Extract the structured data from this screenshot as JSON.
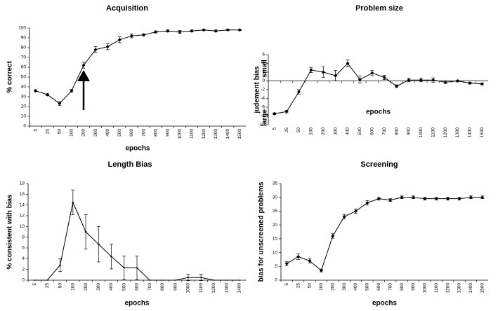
{
  "chart_data": [
    {
      "type": "line",
      "title": "Acquisition",
      "xlabel": "epochs",
      "ylabel": "% correct",
      "categories": [
        "5",
        "25",
        "50",
        "100",
        "200",
        "300",
        "400",
        "500",
        "600",
        "700",
        "800",
        "900",
        "1000",
        "1100",
        "1200",
        "1300",
        "1400",
        "1500"
      ],
      "series": [
        {
          "color": "#000000",
          "marker": "diamond",
          "values": [
            36,
            32,
            23,
            36,
            62,
            78,
            81,
            88,
            92,
            93,
            96,
            97,
            96,
            97,
            98,
            97,
            98,
            98
          ],
          "errors": [
            1,
            1,
            2,
            1.5,
            3,
            3,
            3,
            3,
            2,
            1,
            1,
            1,
            1.5,
            1,
            0.5,
            1,
            0.5,
            0.5
          ]
        }
      ],
      "ylim": [
        0,
        100
      ],
      "yticks": [
        0,
        10,
        20,
        30,
        40,
        50,
        60,
        70,
        80,
        90,
        100
      ]
    },
    {
      "type": "line",
      "title": "Problem size",
      "xlabel": "epochs",
      "ylabel": "judement bias",
      "ylabel_top": "small",
      "ylabel_bottom": "large",
      "categories": [
        "5",
        "25",
        "50",
        "100",
        "200",
        "300",
        "400",
        "500",
        "600",
        "700",
        "800",
        "900",
        "1000",
        "1100",
        "1200",
        "1300",
        "1400",
        "1500"
      ],
      "series": [
        {
          "color": "#000000",
          "marker": "diamond",
          "values": [
            -7.5,
            -7,
            -2.5,
            2.5,
            2,
            1.2,
            4,
            0.3,
            1.8,
            0.8,
            -1.2,
            0.2,
            0.2,
            0.2,
            -0.3,
            0,
            -0.5,
            -0.7
          ],
          "errors": [
            0.2,
            0.3,
            0.5,
            0.6,
            1.2,
            1.2,
            0.8,
            0.8,
            0.6,
            0.5,
            0.3,
            0.4,
            0.4,
            0.5,
            0.3,
            0.2,
            0.2,
            0.2
          ]
        }
      ],
      "ylim": [
        -10,
        6
      ],
      "yticks": [
        -10,
        -8,
        -6,
        -4,
        -2,
        0,
        2,
        4,
        6
      ]
    },
    {
      "type": "line",
      "title": "Length Bias",
      "xlabel": "epochs",
      "ylabel": "% consistent with bias",
      "categories": [
        "5",
        "25",
        "50",
        "100",
        "200",
        "300",
        "400",
        "500",
        "600",
        "700",
        "800",
        "900",
        "1000",
        "1100",
        "1200",
        "1300",
        "1400"
      ],
      "series": [
        {
          "color": "#000000",
          "marker": "dash",
          "values": [
            0,
            0,
            2.8,
            14.5,
            9,
            6.7,
            4.4,
            2.3,
            2.3,
            0,
            0,
            0,
            0.5,
            0.5,
            0,
            0,
            0
          ],
          "errors": [
            0,
            0,
            1.2,
            2.3,
            3.2,
            3.3,
            2.3,
            2.2,
            2.2,
            0,
            0,
            0,
            0.6,
            0.6,
            0,
            0,
            0
          ]
        }
      ],
      "ylim": [
        0,
        18
      ],
      "yticks": [
        0,
        2,
        4,
        6,
        8,
        10,
        12,
        14,
        16,
        18
      ]
    },
    {
      "type": "line",
      "title": "Screening",
      "xlabel": "epochs",
      "ylabel": "bias for unscreened problems",
      "categories": [
        "5",
        "25",
        "50",
        "100",
        "200",
        "300",
        "400",
        "500",
        "600",
        "700",
        "800",
        "900",
        "1000",
        "1100",
        "1200",
        "1300",
        "1400",
        "1500"
      ],
      "series": [
        {
          "color": "#000000",
          "marker": "diamond",
          "values": [
            6,
            8.5,
            7,
            3.5,
            16,
            23,
            25,
            28,
            29.5,
            29,
            30,
            30,
            29.5,
            29.5,
            29.5,
            29.5,
            30,
            30
          ],
          "errors": [
            0.8,
            1,
            0.8,
            0.5,
            0.8,
            0.8,
            0.8,
            0.8,
            0.5,
            0.5,
            0.5,
            0.5,
            0.5,
            0.5,
            0.5,
            0.5,
            0.5,
            0.5
          ]
        }
      ],
      "ylim": [
        0,
        35
      ],
      "yticks": [
        0,
        5,
        10,
        15,
        20,
        25,
        30,
        35
      ]
    }
  ]
}
